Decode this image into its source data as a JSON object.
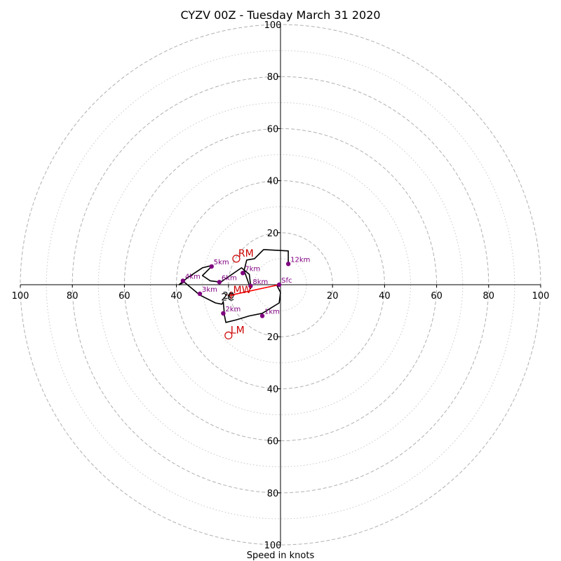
{
  "chart_data": {
    "type": "hodograph",
    "title": "CYZV 00Z - Tuesday March 31 2020",
    "xlabel": "Speed in knots",
    "range": [
      -100,
      100
    ],
    "ring_major": [
      20,
      40,
      60,
      80,
      100
    ],
    "ring_minor": [
      10,
      30,
      50,
      70,
      90
    ],
    "x_ticks": [
      "100",
      "80",
      "60",
      "40",
      "20",
      "20",
      "40",
      "60",
      "80",
      "100"
    ],
    "x_tick_values": [
      -100,
      -80,
      -60,
      -40,
      -20,
      20,
      40,
      60,
      80,
      100
    ],
    "y_ticks": [
      "100",
      "80",
      "60",
      "40",
      "20",
      "20",
      "40",
      "60",
      "80",
      "100"
    ],
    "y_tick_values": [
      100,
      80,
      60,
      40,
      20,
      -20,
      -40,
      -60,
      -80,
      -100
    ],
    "grid_color": "#b0b0b0",
    "hodo_color": "#000000",
    "point_color": "#800080",
    "motion_color": "#cc0000",
    "shear_color": "#ff0000",
    "hodograph": [
      {
        "u": -1.5,
        "v": 0.0
      },
      {
        "u": 0.0,
        "v": -3.0
      },
      {
        "u": -0.5,
        "v": -7.0
      },
      {
        "u": -7.0,
        "v": -11.0
      },
      {
        "u": -12.0,
        "v": -12.0
      },
      {
        "u": -17.0,
        "v": -13.5
      },
      {
        "u": -21.0,
        "v": -14.5
      },
      {
        "u": -21.5,
        "v": -12.0
      },
      {
        "u": -22.0,
        "v": -6.5
      },
      {
        "u": -22.5,
        "v": -7.5
      },
      {
        "u": -25.0,
        "v": -7.0
      },
      {
        "u": -31.0,
        "v": -4.0
      },
      {
        "u": -37.0,
        "v": 1.0
      },
      {
        "u": -39.0,
        "v": 0.0
      },
      {
        "u": -36.0,
        "v": 2.5
      },
      {
        "u": -30.0,
        "v": 6.5
      },
      {
        "u": -26.0,
        "v": 7.5
      },
      {
        "u": -30.0,
        "v": 3.5
      },
      {
        "u": -27.0,
        "v": 1.5
      },
      {
        "u": -23.0,
        "v": 1.0
      },
      {
        "u": -15.0,
        "v": 6.5
      },
      {
        "u": -12.0,
        "v": 4.0
      },
      {
        "u": -11.5,
        "v": 0.0
      },
      {
        "u": -11.5,
        "v": -1.5
      },
      {
        "u": -14.0,
        "v": 5.5
      },
      {
        "u": -13.0,
        "v": 9.5
      },
      {
        "u": -10.0,
        "v": 10.0
      },
      {
        "u": -8.0,
        "v": 12.0
      },
      {
        "u": -6.5,
        "v": 13.5
      },
      {
        "u": 3.0,
        "v": 13.0
      },
      {
        "u": 3.0,
        "v": 8.0
      }
    ],
    "height_points": [
      {
        "label": "Sfc",
        "u": -0.5,
        "v": 0.0
      },
      {
        "label": "1km",
        "u": -7.0,
        "v": -12.0
      },
      {
        "label": "2km",
        "u": -22.0,
        "v": -11.0
      },
      {
        "label": "3km",
        "u": -31.0,
        "v": -3.5
      },
      {
        "label": "4km",
        "u": -37.5,
        "v": 1.5
      },
      {
        "label": "5km",
        "u": -26.5,
        "v": 7.0
      },
      {
        "label": "6km",
        "u": -23.5,
        "v": 1.0
      },
      {
        "label": "7km",
        "u": -14.5,
        "v": 4.5
      },
      {
        "label": "8km",
        "u": -11.5,
        "v": -0.5
      },
      {
        "label": "12km",
        "u": 3.0,
        "v": 8.0
      }
    ],
    "storm_motions": [
      {
        "label": "RM",
        "u": -17.0,
        "v": 10.0
      },
      {
        "label": "LM",
        "u": -20.0,
        "v": -19.5
      },
      {
        "label": "MW",
        "u": -19.0,
        "v": -4.0
      }
    ],
    "shear_vector": {
      "from_u": -0.5,
      "from_v": 0.0,
      "to_u": -19.0,
      "to_v": -4.0
    },
    "annotation": {
      "label": "2C",
      "u": -21.5,
      "v": -5.0
    }
  }
}
